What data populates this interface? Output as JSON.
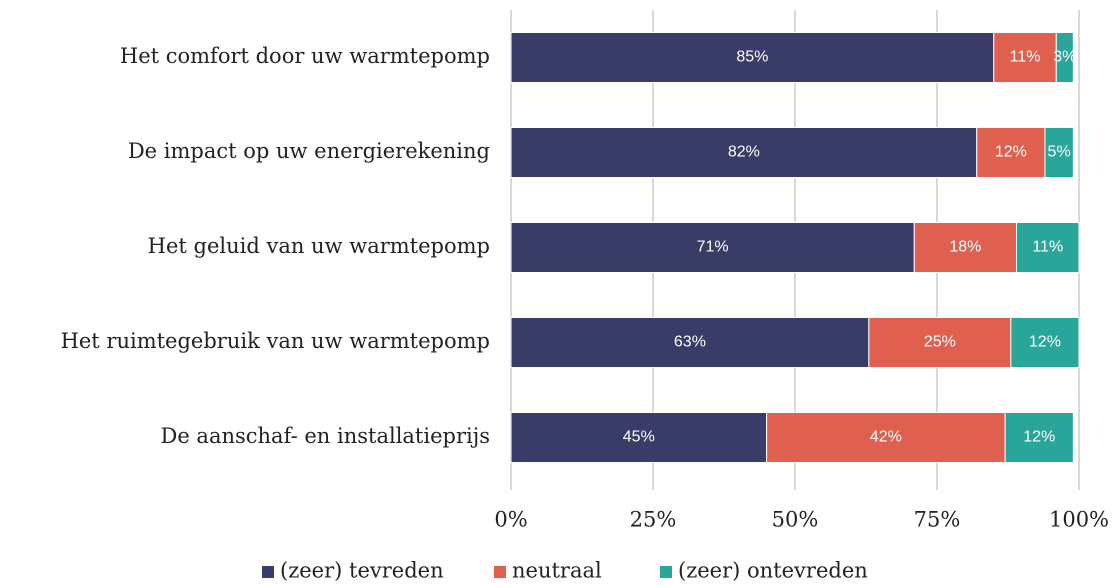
{
  "chart_data": {
    "type": "stacked-bar-horizontal",
    "categories": [
      "Het comfort door uw warmtepomp",
      "De impact op uw energierekening",
      "Het geluid van uw warmtepomp",
      "Het ruimtegebruik van uw warmtepomp",
      "De aanschaf- en installatieprijs"
    ],
    "series": [
      {
        "name": "(zeer) tevreden",
        "color": "#383c66",
        "values": [
          85,
          82,
          71,
          63,
          45
        ],
        "value_labels": [
          "85%",
          "82%",
          "71%",
          "63%",
          "45%"
        ]
      },
      {
        "name": "neutraal",
        "color": "#e0604f",
        "values": [
          11,
          12,
          18,
          25,
          42
        ],
        "value_labels": [
          "11%",
          "12%",
          "18%",
          "25%",
          "42%"
        ]
      },
      {
        "name": "(zeer) ontevreden",
        "color": "#2aa59a",
        "values": [
          3,
          5,
          11,
          12,
          12
        ],
        "value_labels": [
          "3%",
          "5%",
          "11%",
          "12%",
          "12%"
        ]
      }
    ],
    "xlim": [
      0,
      100
    ],
    "xticks": [
      {
        "value": 0,
        "label": "0%"
      },
      {
        "value": 25,
        "label": "25%"
      },
      {
        "value": 50,
        "label": "50%"
      },
      {
        "value": 75,
        "label": "75%"
      },
      {
        "value": 100,
        "label": "100%"
      }
    ],
    "grid": true,
    "legend": "bottom"
  }
}
